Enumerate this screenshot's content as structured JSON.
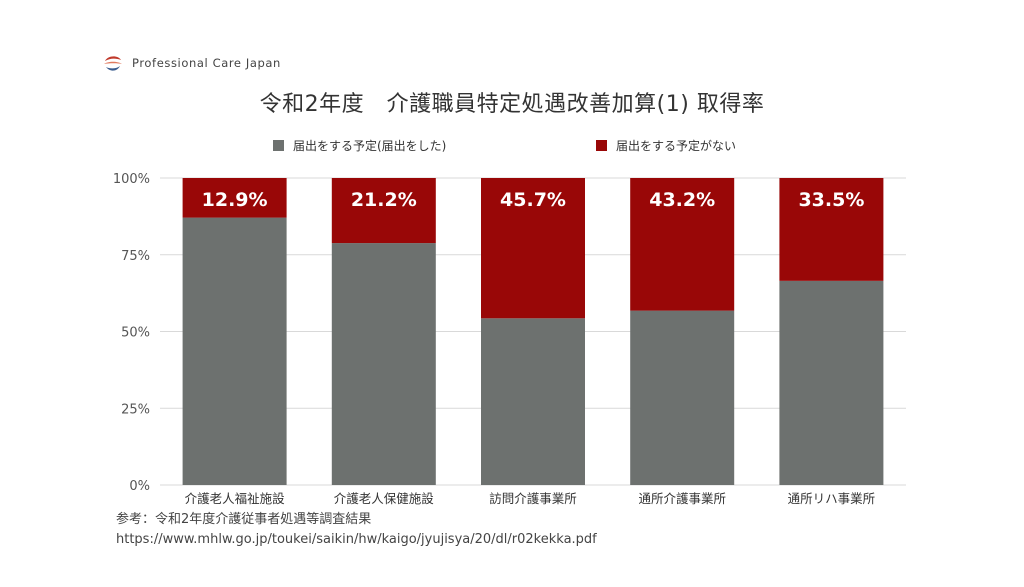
{
  "brand": {
    "name": "Professional Care Japan"
  },
  "title": "令和2年度　介護職員特定処遇改善加算(1) 取得率",
  "colors": {
    "planned": "#6d716f",
    "not_planned": "#990707",
    "grid": "#d9d9d9"
  },
  "chart_data": {
    "type": "bar",
    "stacked": true,
    "categories": [
      "介護老人福祉施設",
      "介護老人保健施設",
      "訪問介護事業所",
      "通所介護事業所",
      "通所リハ事業所"
    ],
    "series": [
      {
        "name": "届出をする予定(届出をした)",
        "values": [
          87.1,
          78.8,
          54.3,
          56.8,
          66.5
        ],
        "color": "#6d716f"
      },
      {
        "name": "届出をする予定がない",
        "values": [
          12.9,
          21.2,
          45.7,
          43.2,
          33.5
        ],
        "color": "#990707"
      }
    ],
    "data_labels": [
      "12.9%",
      "21.2%",
      "45.7%",
      "43.2%",
      "33.5%"
    ],
    "ylim": [
      0,
      100
    ],
    "yticks": [
      "0%",
      "25%",
      "50%",
      "75%",
      "100%"
    ],
    "grid": true,
    "legend_position": "top"
  },
  "source": {
    "line1": "参考：令和2年度介護従事者処遇等調査結果",
    "line2": "https://www.mhlw.go.jp/toukei/saikin/hw/kaigo/jyujisya/20/dl/r02kekka.pdf"
  }
}
